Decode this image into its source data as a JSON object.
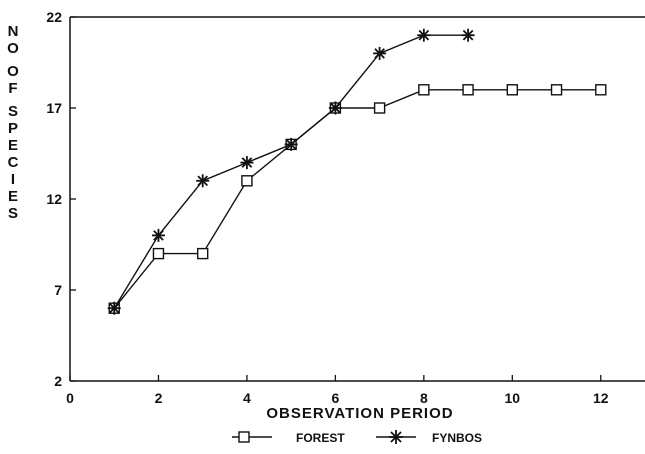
{
  "chart_data": {
    "type": "line",
    "xlabel": "OBSERVATION PERIOD",
    "ylabel": "NO OF SPECIES",
    "xlim": [
      0,
      13
    ],
    "ylim": [
      2,
      22
    ],
    "x_ticks": [
      "0",
      "2",
      "4",
      "6",
      "8",
      "10",
      "12"
    ],
    "y_ticks": [
      "2",
      "7",
      "12",
      "17",
      "22"
    ],
    "grid": false,
    "legend_position": "bottom-center",
    "series": [
      {
        "name": "FOREST",
        "marker": "square",
        "x": [
          1,
          2,
          3,
          4,
          5,
          6,
          7,
          8,
          9,
          10,
          11,
          12
        ],
        "y": [
          6,
          9,
          9,
          13,
          15,
          17,
          17,
          18,
          18,
          18,
          18,
          18
        ]
      },
      {
        "name": "FYNBOS",
        "marker": "asterisk",
        "x": [
          1,
          2,
          3,
          4,
          5,
          6,
          7,
          8,
          9
        ],
        "y": [
          6,
          10,
          13,
          14,
          15,
          17,
          20,
          21,
          21
        ]
      }
    ]
  }
}
